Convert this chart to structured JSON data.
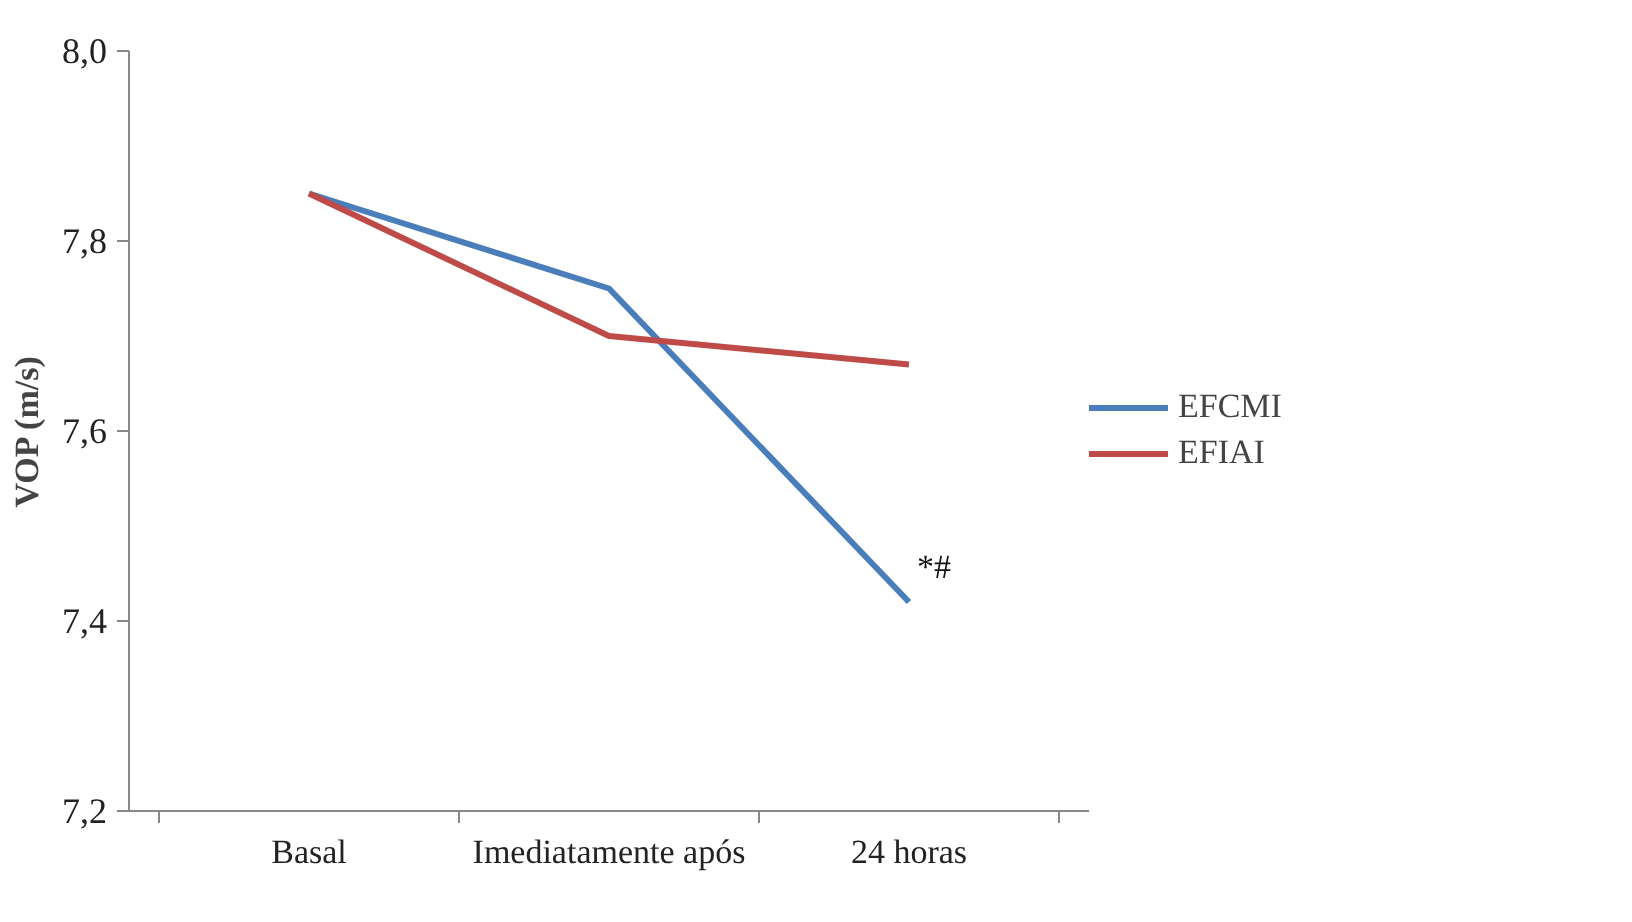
{
  "chart_data": {
    "type": "line",
    "ylabel": "VOP (m/s)",
    "categories": [
      "Basal",
      "Imediatamente após",
      "24 horas"
    ],
    "series": [
      {
        "name": "EFCMI",
        "color": "#4a7ebb",
        "values": [
          7.85,
          7.75,
          7.42
        ]
      },
      {
        "name": "EFIAI",
        "color": "#be4b48",
        "values": [
          7.85,
          7.7,
          7.67
        ]
      }
    ],
    "ylim": [
      7.2,
      8.0
    ],
    "yticks": [
      {
        "value": 7.2,
        "label": "7,2"
      },
      {
        "value": 7.4,
        "label": "7,4"
      },
      {
        "value": 7.6,
        "label": "7,6"
      },
      {
        "value": 7.8,
        "label": "7,8"
      },
      {
        "value": 8.0,
        "label": "8,0"
      }
    ],
    "annotations": [
      {
        "text": "*#",
        "x": "24 horas",
        "y": 7.42
      }
    ],
    "grid": false,
    "legend": "right",
    "marker": "none",
    "line_style": "solid"
  }
}
